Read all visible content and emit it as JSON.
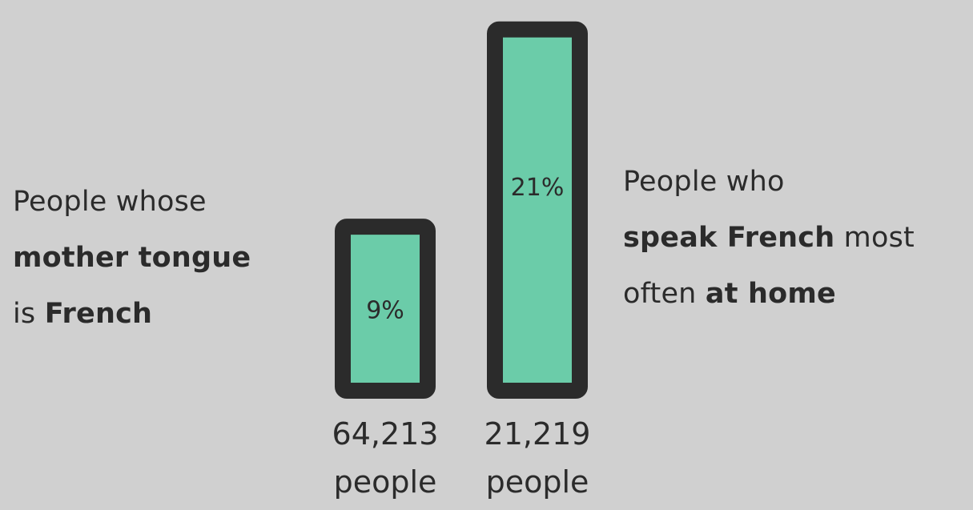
{
  "left_label": {
    "line1": "People whose",
    "line2_bold": "mother tongue",
    "line3_prefix": "is ",
    "line3_bold": "French"
  },
  "right_label": {
    "line1": "People who",
    "line2_bold": "speak French",
    "line2_suffix": " most",
    "line3_prefix": "often ",
    "line3_bold": "at home"
  },
  "colors": {
    "background": "#d0d0d0",
    "bar_fill": "#6bcca9",
    "bar_outline": "#2b2b2b",
    "text": "#2b2b2b"
  },
  "chart_data": {
    "type": "bar",
    "categories": [
      "People whose mother tongue is French",
      "People who speak French most often at home"
    ],
    "values": [
      9,
      21
    ],
    "value_labels": [
      "9%",
      "21%"
    ],
    "count_numbers": [
      "64,213",
      "21,219"
    ],
    "count_unit": "people",
    "ylim": [
      0,
      22.4
    ],
    "grid": false,
    "legend": "none"
  }
}
